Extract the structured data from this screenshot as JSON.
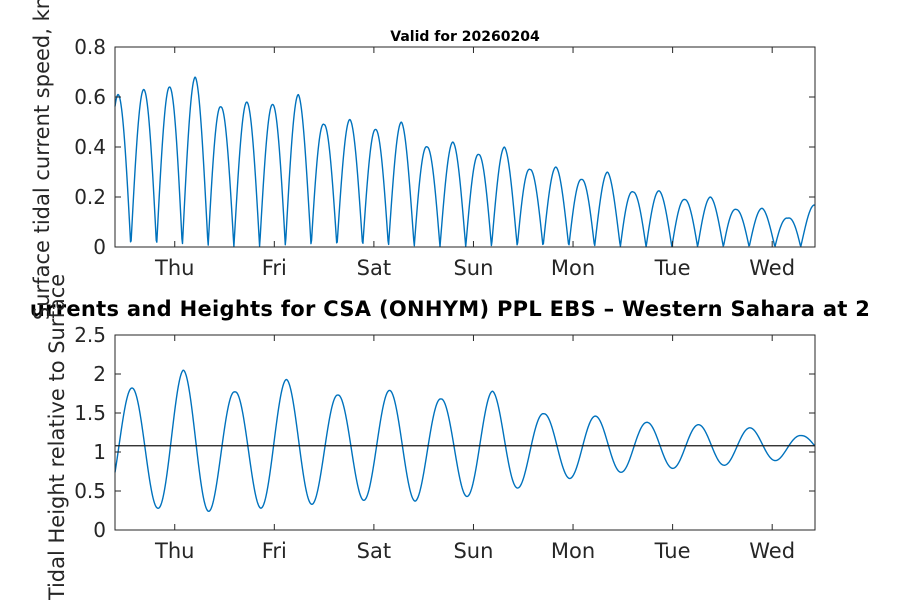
{
  "figure": {
    "background": "#ffffff",
    "axis_color": "#262626",
    "curve_color": "#0072BD",
    "mean_line_color": "#1a1a1a"
  },
  "main_title": {
    "text": "urrents and Heights for CSA (ONHYM) PPL EBS  – Western Sahara at 2",
    "note": "clipped at both image edges"
  },
  "chart_data": [
    {
      "type": "line",
      "position": "top",
      "title": "Valid for 20260204",
      "ylabel": "Surface tidal current speed, kn",
      "xlabel": "",
      "ylim": [
        0,
        0.8
      ],
      "yticks": [
        0,
        0.2,
        0.4,
        0.6,
        0.8
      ],
      "ytick_labels": [
        "0",
        "0.2",
        "0.4",
        "0.6",
        "0.8"
      ],
      "x_range_days": [
        0,
        7.03
      ],
      "xtick_days": [
        0.6,
        1.6,
        2.6,
        3.6,
        4.6,
        5.6,
        6.6
      ],
      "xtick_labels": [
        "Thu",
        "Fri",
        "Sat",
        "Sun",
        "Mon",
        "Tue",
        "Wed"
      ],
      "grid": false,
      "legend": null,
      "series": [
        {
          "name": "surface-tidal-current-speed",
          "color": "#0072BD",
          "model": {
            "kind": "abs-sin",
            "period_days": 0.5175,
            "phase_day": -0.1,
            "envelope_keyframes": [
              [
                0,
                0.6
              ],
              [
                0.029,
                0.61
              ],
              [
                0.288,
                0.63
              ],
              [
                0.547,
                0.64
              ],
              [
                0.806,
                0.68
              ],
              [
                1.064,
                0.56
              ],
              [
                1.323,
                0.58
              ],
              [
                1.582,
                0.57
              ],
              [
                1.841,
                0.61
              ],
              [
                2.099,
                0.49
              ],
              [
                2.358,
                0.51
              ],
              [
                2.617,
                0.47
              ],
              [
                2.876,
                0.5
              ],
              [
                3.134,
                0.4
              ],
              [
                3.393,
                0.42
              ],
              [
                3.652,
                0.37
              ],
              [
                3.911,
                0.4
              ],
              [
                4.169,
                0.31
              ],
              [
                4.428,
                0.32
              ],
              [
                4.687,
                0.27
              ],
              [
                4.946,
                0.3
              ],
              [
                5.204,
                0.22
              ],
              [
                5.463,
                0.225
              ],
              [
                5.722,
                0.19
              ],
              [
                5.981,
                0.2
              ],
              [
                6.239,
                0.15
              ],
              [
                6.498,
                0.155
              ],
              [
                6.757,
                0.115
              ],
              [
                7.03,
                0.17
              ]
            ]
          },
          "peak_values_kn": [
            0.61,
            0.63,
            0.64,
            0.68,
            0.56,
            0.58,
            0.57,
            0.61,
            0.49,
            0.51,
            0.47,
            0.5,
            0.4,
            0.42,
            0.37,
            0.4,
            0.31,
            0.32,
            0.27,
            0.3,
            0.22,
            0.23,
            0.19,
            0.2,
            0.15,
            0.16,
            0.12,
            0.17
          ],
          "minimum_kn": 0
        }
      ]
    },
    {
      "type": "line",
      "position": "bottom",
      "title": "",
      "ylabel": "Tidal Height relative to Surface",
      "xlabel": "",
      "ylim": [
        0,
        2.5
      ],
      "yticks": [
        0,
        0.5,
        1,
        1.5,
        2,
        2.5
      ],
      "ytick_labels": [
        "0",
        "0.5",
        "1",
        "1.5",
        "2",
        "2.5"
      ],
      "x_range_days": [
        0,
        7.03
      ],
      "xtick_days": [
        0.6,
        1.6,
        2.6,
        3.6,
        4.6,
        5.6,
        6.6
      ],
      "xtick_labels": [
        "Thu",
        "Fri",
        "Sat",
        "Sun",
        "Mon",
        "Tue",
        "Wed"
      ],
      "grid": false,
      "legend": null,
      "series": [
        {
          "name": "tidal-height",
          "color": "#0072BD",
          "model": {
            "kind": "sin-mean",
            "mean": 1.08,
            "period_days": 0.5175,
            "phase_day": 0.04,
            "envelope_keyframes": [
              [
                0,
                0.73
              ],
              [
                0.169,
                0.74
              ],
              [
                0.428,
                0.8
              ],
              [
                0.686,
                0.97
              ],
              [
                0.945,
                0.84
              ],
              [
                1.204,
                0.69
              ],
              [
                1.462,
                0.8
              ],
              [
                1.721,
                0.85
              ],
              [
                1.98,
                0.75
              ],
              [
                2.239,
                0.65
              ],
              [
                2.497,
                0.7
              ],
              [
                2.756,
                0.71
              ],
              [
                3.015,
                0.71
              ],
              [
                3.274,
                0.6
              ],
              [
                3.532,
                0.65
              ],
              [
                3.791,
                0.7
              ],
              [
                4.05,
                0.54
              ],
              [
                4.309,
                0.41
              ],
              [
                4.567,
                0.42
              ],
              [
                4.826,
                0.38
              ],
              [
                5.085,
                0.34
              ],
              [
                5.344,
                0.3
              ],
              [
                5.602,
                0.29
              ],
              [
                5.861,
                0.27
              ],
              [
                6.12,
                0.25
              ],
              [
                6.379,
                0.23
              ],
              [
                6.637,
                0.19
              ],
              [
                6.896,
                0.13
              ],
              [
                7.03,
                0.13
              ]
            ]
          },
          "high_water_values": [
            1.82,
            2.05,
            1.77,
            1.93,
            1.73,
            1.79,
            1.68,
            1.78,
            1.49,
            1.46,
            1.38,
            1.35,
            1.31,
            1.21
          ],
          "low_water_values": [
            0.28,
            0.24,
            0.28,
            0.33,
            0.38,
            0.37,
            0.43,
            0.54,
            0.66,
            0.74,
            0.79,
            0.83,
            0.89
          ]
        },
        {
          "name": "mean-level",
          "color": "#1a1a1a",
          "model": {
            "kind": "constant",
            "value": 1.08
          }
        }
      ]
    }
  ]
}
